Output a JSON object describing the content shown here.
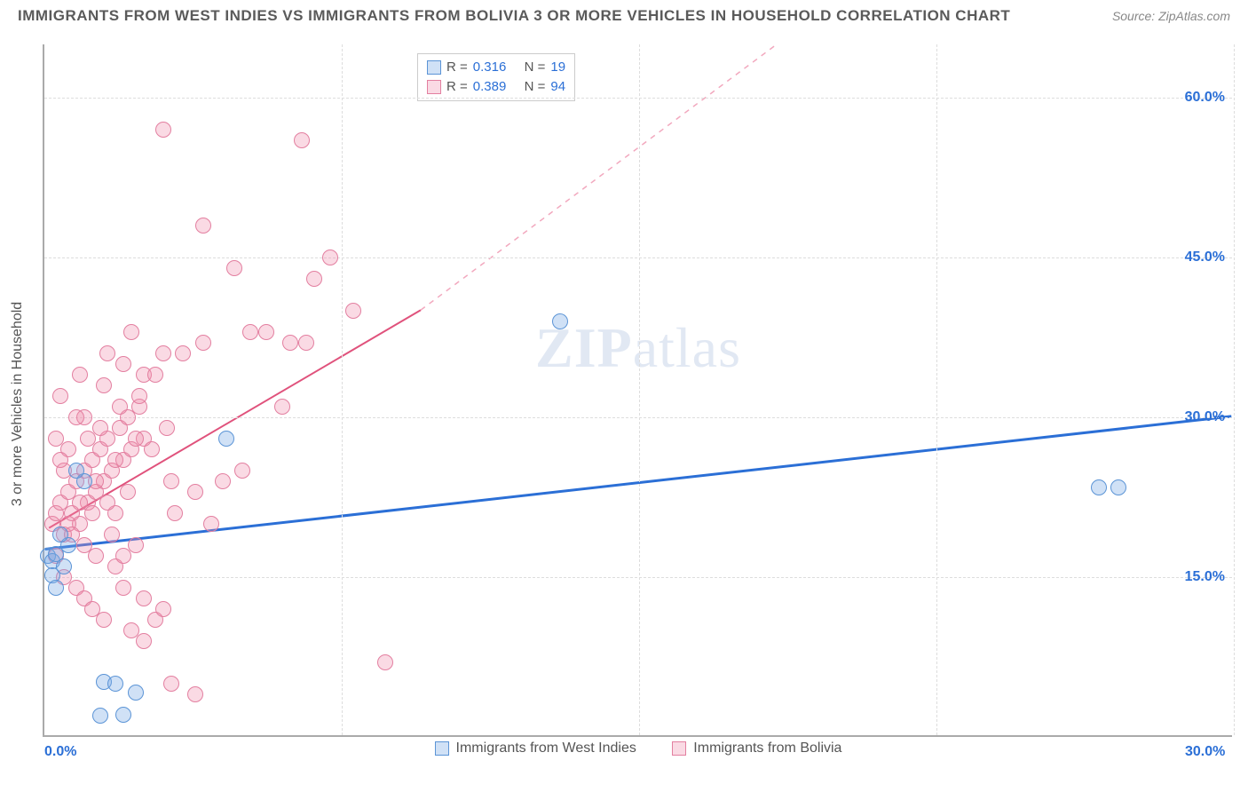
{
  "title": "IMMIGRANTS FROM WEST INDIES VS IMMIGRANTS FROM BOLIVIA 3 OR MORE VEHICLES IN HOUSEHOLD CORRELATION CHART",
  "source_label": "Source:",
  "source_value": "ZipAtlas.com",
  "watermark_a": "ZIP",
  "watermark_b": "atlas",
  "ylabel": "3 or more Vehicles in Household",
  "xmin": 0.0,
  "xmax": 30.0,
  "ymin": 0.0,
  "ymax": 65.0,
  "xticks": [
    {
      "v": 0.0,
      "label": "0.0%",
      "color": "#2b6fd6"
    },
    {
      "v": 30.0,
      "label": "30.0%",
      "color": "#2b6fd6"
    }
  ],
  "yticks": [
    {
      "v": 15.0,
      "label": "15.0%",
      "color": "#2b6fd6"
    },
    {
      "v": 30.0,
      "label": "30.0%",
      "color": "#2b6fd6"
    },
    {
      "v": 45.0,
      "label": "45.0%",
      "color": "#2b6fd6"
    },
    {
      "v": 60.0,
      "label": "60.0%",
      "color": "#2b6fd6"
    }
  ],
  "vgrids": [
    7.5,
    15.0,
    22.5,
    30.0
  ],
  "series": [
    {
      "name": "Immigrants from West Indies",
      "key": "west-indies",
      "color_fill": "rgba(120,170,230,0.35)",
      "color_stroke": "#5b94d6",
      "marker_r": 9,
      "R": "0.316",
      "N": "19",
      "trend": {
        "x1": 0.0,
        "y1": 17.5,
        "x2": 30.0,
        "y2": 30.0,
        "color": "#2b6fd6",
        "width": 3,
        "dash": "none"
      },
      "points": [
        [
          0.1,
          17.0
        ],
        [
          0.2,
          16.5
        ],
        [
          0.3,
          17.2
        ],
        [
          1.0,
          24.0
        ],
        [
          0.8,
          25.0
        ],
        [
          0.2,
          15.2
        ],
        [
          1.5,
          5.2
        ],
        [
          1.8,
          5.0
        ],
        [
          1.4,
          2.0
        ],
        [
          2.0,
          2.1
        ],
        [
          2.3,
          4.2
        ],
        [
          4.6,
          28.0
        ],
        [
          13.0,
          39.0
        ],
        [
          0.6,
          18.0
        ],
        [
          26.6,
          23.4
        ],
        [
          27.1,
          23.4
        ],
        [
          0.5,
          16.0
        ],
        [
          0.4,
          19.0
        ],
        [
          0.3,
          14.0
        ]
      ]
    },
    {
      "name": "Immigrants from Bolivia",
      "key": "bolivia",
      "color_fill": "rgba(240,140,170,0.32)",
      "color_stroke": "#e37fa0",
      "marker_r": 9,
      "R": "0.389",
      "N": "94",
      "trend_solid": {
        "x1": 0.1,
        "y1": 19.5,
        "x2": 9.5,
        "y2": 40.0,
        "color": "#e0527c",
        "width": 2
      },
      "trend_dash": {
        "x1": 9.5,
        "y1": 40.0,
        "x2": 18.5,
        "y2": 65.0,
        "color": "#f2a8be",
        "width": 1.5
      },
      "points": [
        [
          0.2,
          20
        ],
        [
          0.3,
          21
        ],
        [
          0.4,
          22
        ],
        [
          0.5,
          19
        ],
        [
          0.6,
          23
        ],
        [
          0.7,
          21
        ],
        [
          0.8,
          24
        ],
        [
          0.9,
          20
        ],
        [
          1.0,
          25
        ],
        [
          1.1,
          22
        ],
        [
          1.2,
          26
        ],
        [
          1.3,
          23
        ],
        [
          1.4,
          27
        ],
        [
          1.5,
          24
        ],
        [
          1.6,
          28
        ],
        [
          1.7,
          25
        ],
        [
          1.8,
          21
        ],
        [
          1.9,
          29
        ],
        [
          2.0,
          26
        ],
        [
          2.1,
          30
        ],
        [
          2.2,
          27
        ],
        [
          2.3,
          18
        ],
        [
          2.4,
          31
        ],
        [
          2.5,
          28
        ],
        [
          0.5,
          15
        ],
        [
          0.8,
          14
        ],
        [
          1.0,
          13
        ],
        [
          1.2,
          12
        ],
        [
          1.5,
          11
        ],
        [
          1.8,
          16
        ],
        [
          2.0,
          17
        ],
        [
          2.2,
          10
        ],
        [
          2.5,
          9
        ],
        [
          2.8,
          11
        ],
        [
          3.0,
          12
        ],
        [
          3.2,
          24
        ],
        [
          0.3,
          28
        ],
        [
          0.6,
          27
        ],
        [
          1.0,
          30
        ],
        [
          1.5,
          33
        ],
        [
          2.0,
          35
        ],
        [
          2.5,
          34
        ],
        [
          3.0,
          36
        ],
        [
          3.5,
          36
        ],
        [
          4.0,
          37
        ],
        [
          3.3,
          21
        ],
        [
          3.8,
          23
        ],
        [
          4.2,
          20
        ],
        [
          4.5,
          24
        ],
        [
          5.0,
          25
        ],
        [
          0.4,
          32
        ],
        [
          0.9,
          34
        ],
        [
          1.6,
          36
        ],
        [
          2.2,
          38
        ],
        [
          2.8,
          34
        ],
        [
          4.0,
          48
        ],
        [
          4.8,
          44
        ],
        [
          5.2,
          38
        ],
        [
          5.6,
          38
        ],
        [
          6.0,
          31
        ],
        [
          6.2,
          37
        ],
        [
          6.6,
          37
        ],
        [
          6.8,
          43
        ],
        [
          7.2,
          45
        ],
        [
          7.8,
          40
        ],
        [
          3.0,
          57
        ],
        [
          6.5,
          56
        ],
        [
          8.6,
          7
        ],
        [
          3.2,
          5
        ],
        [
          3.8,
          4
        ],
        [
          2.0,
          14
        ],
        [
          2.5,
          13
        ],
        [
          1.0,
          18
        ],
        [
          1.3,
          17
        ],
        [
          1.7,
          19
        ],
        [
          0.8,
          30
        ],
        [
          0.5,
          25
        ],
        [
          0.4,
          26
        ],
        [
          1.1,
          28
        ],
        [
          1.4,
          29
        ],
        [
          1.9,
          31
        ],
        [
          2.4,
          32
        ],
        [
          2.7,
          27
        ],
        [
          3.1,
          29
        ],
        [
          1.2,
          21
        ],
        [
          1.6,
          22
        ],
        [
          2.1,
          23
        ],
        [
          0.6,
          20
        ],
        [
          0.9,
          22
        ],
        [
          1.3,
          24
        ],
        [
          1.8,
          26
        ],
        [
          2.3,
          28
        ],
        [
          0.7,
          19
        ],
        [
          0.3,
          17
        ]
      ]
    }
  ],
  "legend": {
    "r_label": "R =",
    "n_label": "N =",
    "value_color": "#2b6fd6",
    "label_color": "#555"
  }
}
